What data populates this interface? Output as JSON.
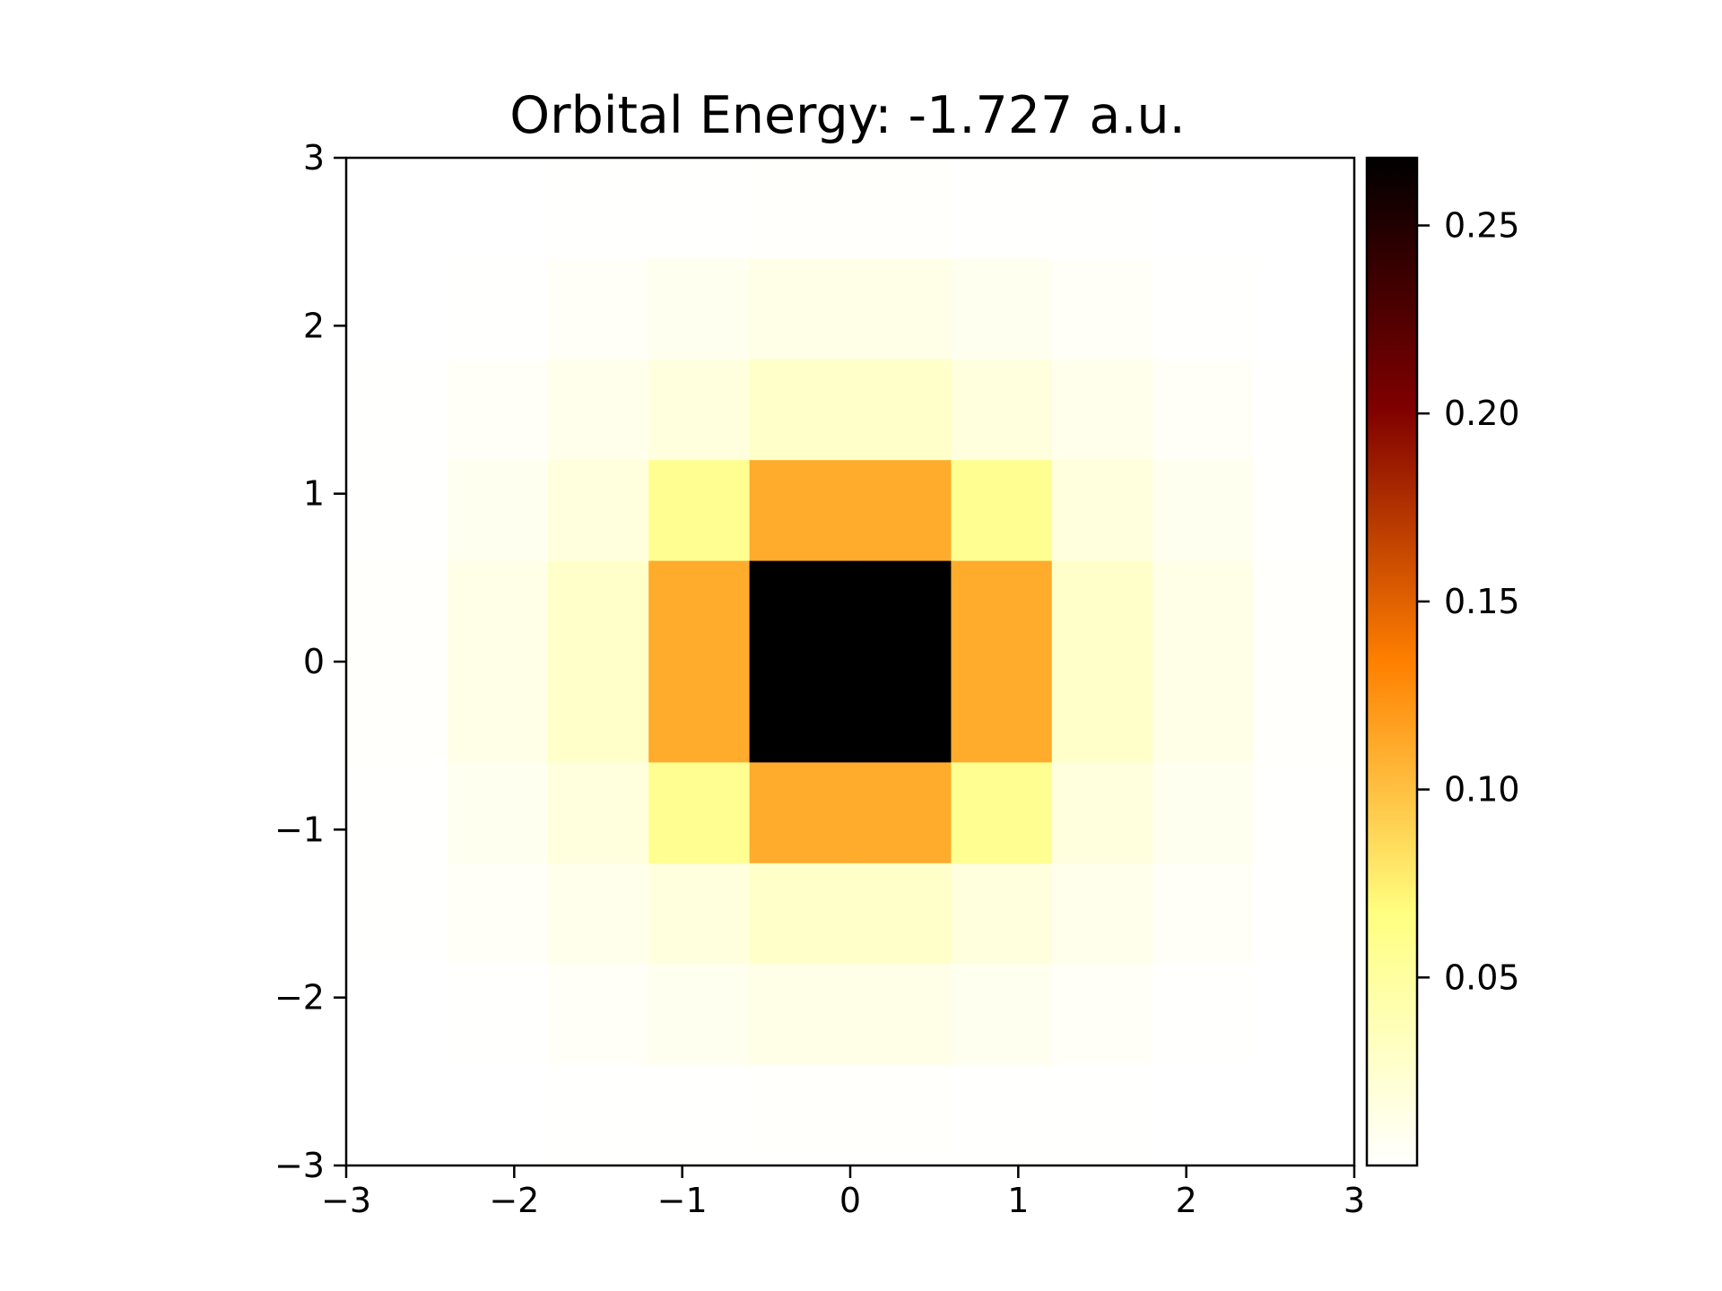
{
  "chart_data": {
    "type": "heatmap",
    "title": "Orbital Energy: -1.727 a.u.",
    "xlabel": "",
    "ylabel": "",
    "xlim": [
      -3,
      3
    ],
    "ylim": [
      -3,
      3
    ],
    "x_ticks": [
      "−3",
      "−2",
      "−1",
      "0",
      "1",
      "2",
      "3"
    ],
    "y_ticks": [
      "−3",
      "−2",
      "−1",
      "0",
      "1",
      "2",
      "3"
    ],
    "x_tick_values": [
      -3,
      -2,
      -1,
      0,
      1,
      2,
      3
    ],
    "y_tick_values": [
      -3,
      -2,
      -1,
      0,
      1,
      2,
      3
    ],
    "grid": false,
    "colormap": "afmhot_r",
    "cell_size": 0.6,
    "x_centers": [
      -2.7,
      -2.1,
      -1.5,
      -0.9,
      -0.3,
      0.3,
      0.9,
      1.5,
      2.1,
      2.7
    ],
    "y_centers": [
      2.7,
      2.1,
      1.5,
      0.9,
      0.3,
      -0.3,
      -0.9,
      -1.5,
      -2.1,
      -2.7
    ],
    "z": [
      [
        0.0,
        0.0,
        0.0003,
        0.001,
        0.002,
        0.002,
        0.001,
        0.0003,
        0.0,
        0.0
      ],
      [
        0.0,
        0.001,
        0.004,
        0.008,
        0.012,
        0.012,
        0.008,
        0.004,
        0.001,
        0.0
      ],
      [
        0.0003,
        0.004,
        0.01,
        0.018,
        0.028,
        0.028,
        0.018,
        0.01,
        0.004,
        0.0003
      ],
      [
        0.001,
        0.008,
        0.018,
        0.058,
        0.111,
        0.111,
        0.058,
        0.018,
        0.008,
        0.001
      ],
      [
        0.002,
        0.012,
        0.028,
        0.111,
        0.268,
        0.268,
        0.111,
        0.028,
        0.012,
        0.002
      ],
      [
        0.002,
        0.012,
        0.028,
        0.111,
        0.268,
        0.268,
        0.111,
        0.028,
        0.012,
        0.002
      ],
      [
        0.001,
        0.008,
        0.018,
        0.058,
        0.111,
        0.111,
        0.058,
        0.018,
        0.008,
        0.001
      ],
      [
        0.0003,
        0.004,
        0.01,
        0.018,
        0.028,
        0.028,
        0.018,
        0.01,
        0.004,
        0.0003
      ],
      [
        0.0,
        0.001,
        0.004,
        0.008,
        0.012,
        0.012,
        0.008,
        0.004,
        0.001,
        0.0
      ],
      [
        0.0,
        0.0,
        0.0003,
        0.001,
        0.002,
        0.002,
        0.001,
        0.0003,
        0.0,
        0.0
      ]
    ],
    "colorbar": {
      "min": 0.0,
      "max": 0.268,
      "ticks": [
        0.05,
        0.1,
        0.15,
        0.2,
        0.25
      ],
      "tick_labels": [
        "0.05",
        "0.10",
        "0.15",
        "0.20",
        "0.25"
      ]
    }
  }
}
